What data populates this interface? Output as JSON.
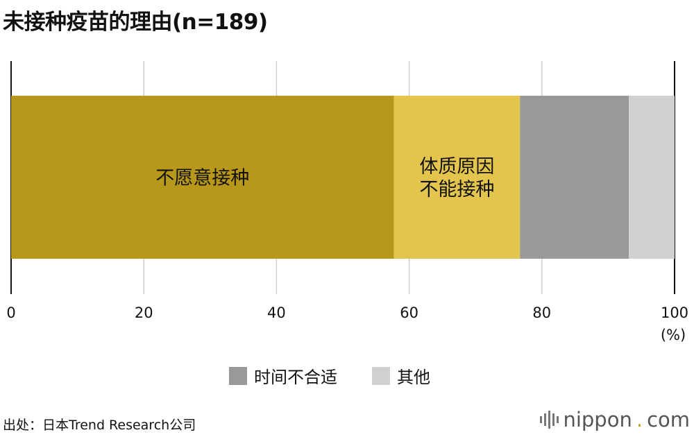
{
  "chart_data": {
    "type": "bar",
    "orientation": "horizontal-stacked",
    "title": "未接种疫苗的理由(n=189)",
    "xlim": [
      0,
      100
    ],
    "x_ticks": [
      "0",
      "20",
      "40",
      "60",
      "80",
      "100"
    ],
    "x_unit": "(%)",
    "grid": true,
    "legend": "bottom",
    "series": [
      {
        "name": "不愿意接种",
        "value": 57.7,
        "color": "#b8981a",
        "label_lines": [
          "不愿意接种"
        ]
      },
      {
        "name": "体质原因不能接种",
        "value": 19.0,
        "color": "#e3c44c",
        "label_lines": [
          "体质原因",
          "不能接种"
        ]
      },
      {
        "name": "时间不合适",
        "value": 16.4,
        "color": "#999999",
        "label_lines": []
      },
      {
        "name": "其他",
        "value": 6.9,
        "color": "#d0d0d0",
        "label_lines": []
      }
    ]
  },
  "legend": [
    {
      "label": "时间不合适",
      "color": "#999999"
    },
    {
      "label": "其他",
      "color": "#d0d0d0"
    }
  ],
  "source": "出处：日本Trend Research公司",
  "brand": {
    "name": "nippon",
    "dot": ".",
    "suffix": "com",
    "icon": "soundwave-logo-icon"
  }
}
